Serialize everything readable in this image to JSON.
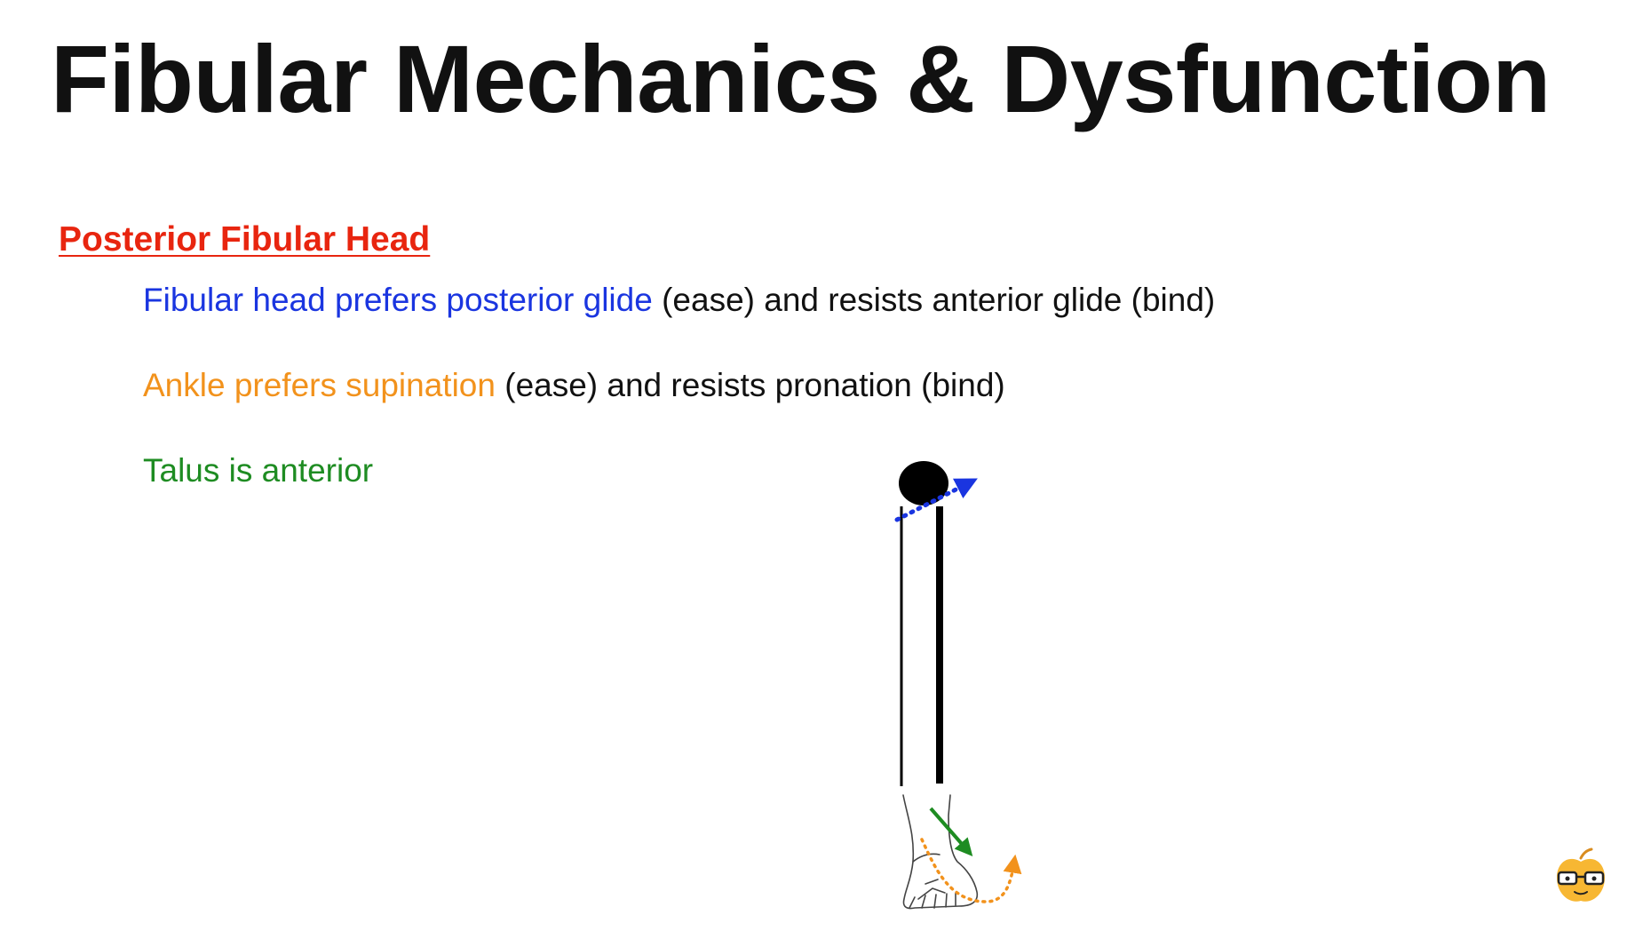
{
  "title": "Fibular Mechanics & Dysfunction",
  "heading": {
    "text": "Posterior Fibular Head",
    "color": "#e8250f"
  },
  "bullets": [
    {
      "highlight": "Fibular head prefers posterior glide",
      "rest": " (ease) and resists anterior glide (bind)",
      "color": "#1a35e0"
    },
    {
      "highlight": "Ankle prefers supination",
      "rest": " (ease) and resists pronation (bind)",
      "color": "#f2921c"
    },
    {
      "highlight": "Talus is anterior",
      "rest": "",
      "color": "#1e8c22"
    }
  ],
  "diagram": {
    "head_arrow_color": "#1a35e0",
    "talus_arrow_color": "#1e8c22",
    "foot_arrow_color": "#f2921c",
    "bone_color": "#000000"
  },
  "logo": {
    "icon": "apple-with-glasses-logo",
    "fill": "#f7b733",
    "leaf": "#d98c1f"
  }
}
